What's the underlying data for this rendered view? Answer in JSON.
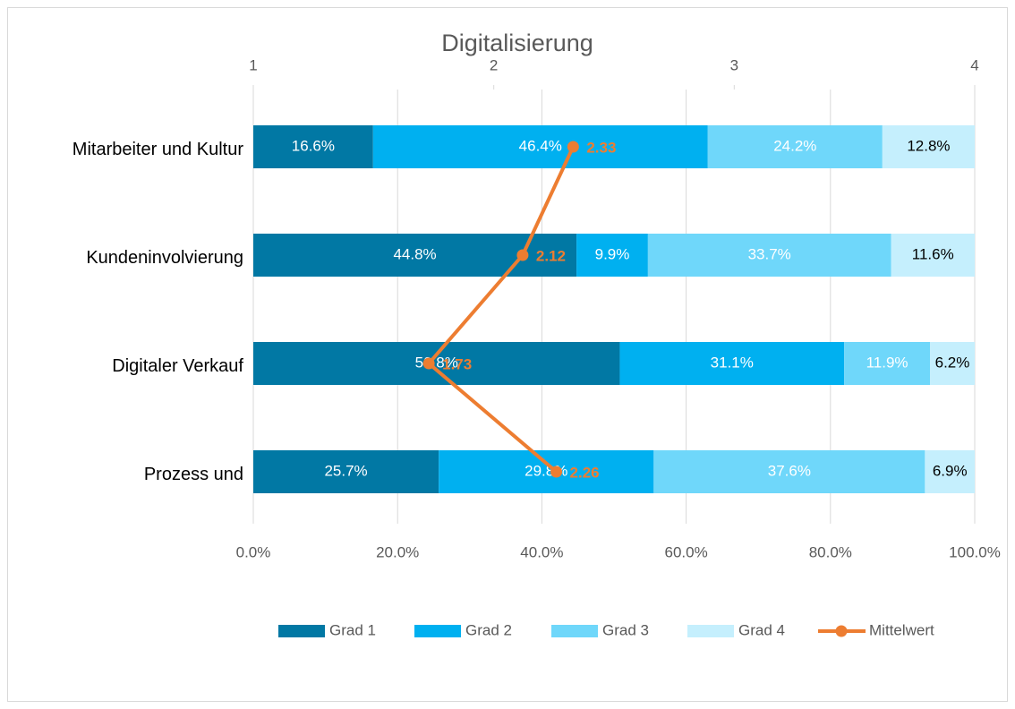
{
  "chart_data": {
    "type": "stacked-bar-line",
    "title": "Digitalisierung",
    "categories": [
      "Mitarbeiter und Kultur",
      "Kundeninvolvierung",
      "Digitaler Verkauf",
      "Prozess und"
    ],
    "series": [
      {
        "name": "Grad 1",
        "color": "#0178a4",
        "label_color": "#ffffff",
        "values": [
          16.6,
          44.8,
          50.8,
          25.7
        ],
        "value_labels": [
          "16.6%",
          "44.8%",
          "50.8%",
          "25.7%"
        ]
      },
      {
        "name": "Grad 2",
        "color": "#00b0f0",
        "label_color": "#ffffff",
        "values": [
          46.4,
          9.9,
          31.1,
          29.8
        ],
        "value_labels": [
          "46.4%",
          "9.9%",
          "31.1%",
          "29.8%"
        ]
      },
      {
        "name": "Grad 3",
        "color": "#6fd7fa",
        "label_color": "#ffffff",
        "values": [
          24.2,
          33.7,
          11.9,
          37.6
        ],
        "value_labels": [
          "24.2%",
          "33.7%",
          "11.9%",
          "37.6%"
        ]
      },
      {
        "name": "Grad 4",
        "color": "#c5effd",
        "label_color": "#000000",
        "values": [
          12.8,
          11.6,
          6.2,
          6.9
        ],
        "value_labels": [
          "12.8%",
          "11.6%",
          "6.2%",
          "6.9%"
        ]
      },
      {
        "name": "Mittelwert",
        "color": "#ed7d31",
        "type": "line",
        "axis": "x2",
        "values": [
          2.33,
          2.12,
          1.73,
          2.26
        ]
      }
    ],
    "xlim": [
      0,
      100
    ],
    "xticks": [
      {
        "value": 0,
        "label": "0.0%"
      },
      {
        "value": 20,
        "label": "20.0%"
      },
      {
        "value": 40,
        "label": "40.0%"
      },
      {
        "value": 60,
        "label": "60.0%"
      },
      {
        "value": 80,
        "label": "80.0%"
      },
      {
        "value": 100,
        "label": "100.0%"
      }
    ],
    "x2lim": [
      1,
      4
    ],
    "x2ticks": [
      1,
      2,
      3,
      4
    ],
    "grid": true,
    "legend": "bottom"
  }
}
